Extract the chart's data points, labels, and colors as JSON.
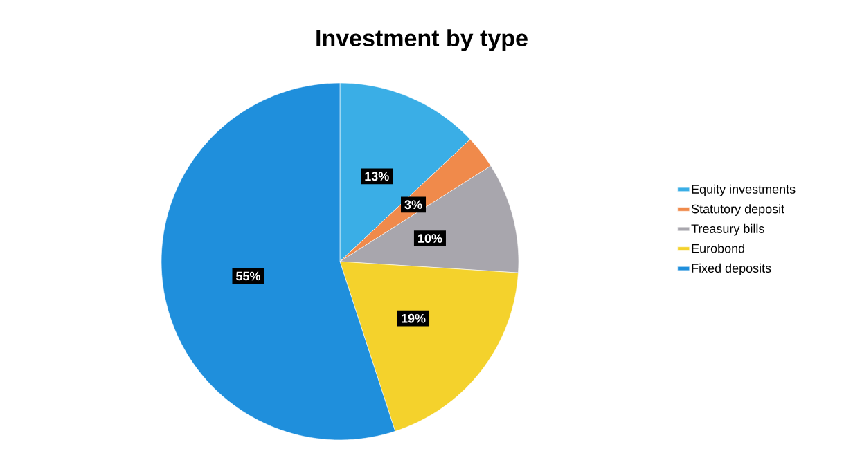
{
  "chart_data": {
    "type": "pie",
    "title": "Investment by type",
    "categories": [
      "Equity investments",
      "Statutory deposit",
      "Treasury bills",
      "Eurobond",
      "Fixed deposits"
    ],
    "values": [
      13,
      3,
      10,
      19,
      55
    ],
    "colors": [
      "#3aaee6",
      "#f08a4b",
      "#a8a6ad",
      "#f4d22c",
      "#1f8fdc"
    ],
    "value_labels": [
      "13%",
      "3%",
      "10%",
      "19%",
      "55%"
    ],
    "legend": "right"
  }
}
